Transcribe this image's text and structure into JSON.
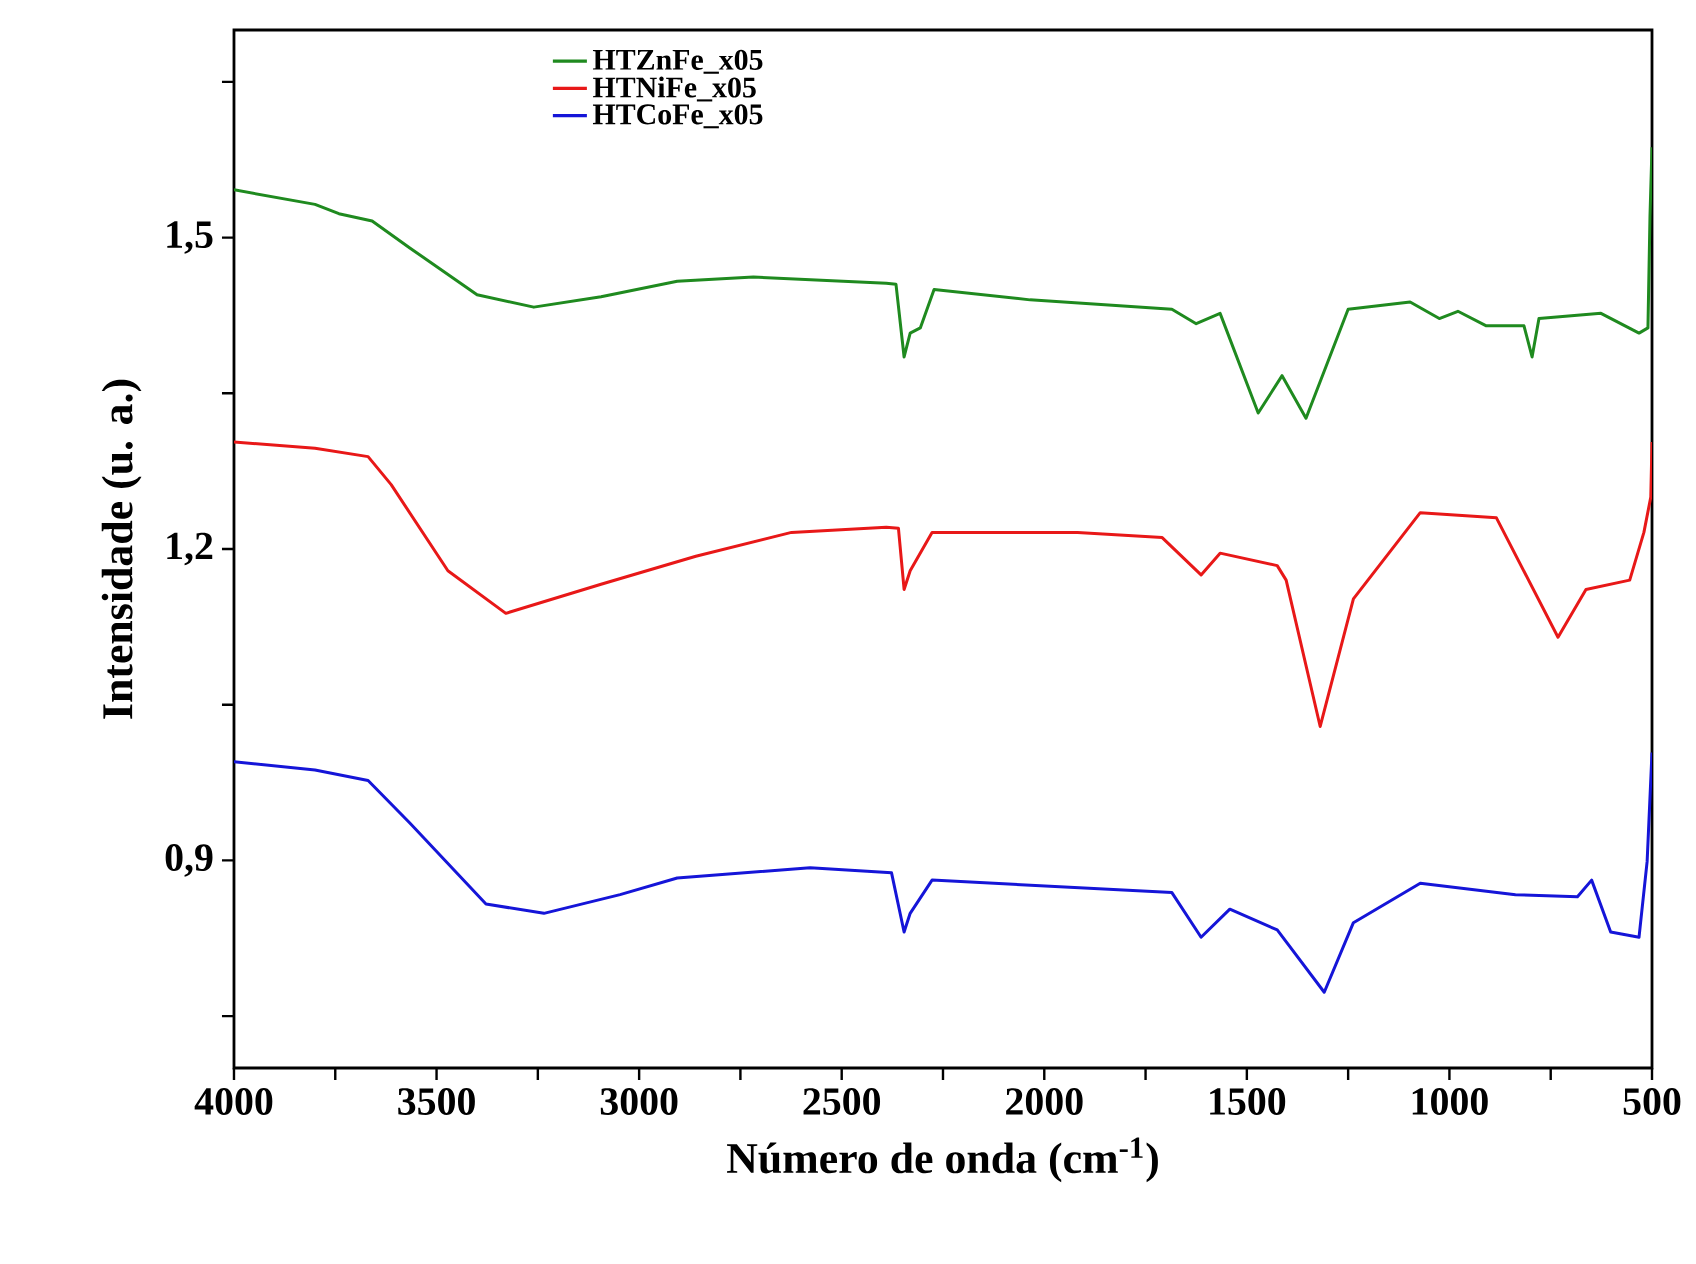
{
  "chart_data": {
    "type": "line",
    "xlabel": "Número de onda (cm$^{-1}$)",
    "ylabel": "Intensidade (u. a.)",
    "xlim": [
      4000,
      500
    ],
    "ylim": [
      0.7,
      1.7
    ],
    "xticks": [
      4000,
      {
        "value": 3750,
        "label": null
      },
      3500,
      {
        "value": 3250,
        "label": null
      },
      3000,
      {
        "value": 2750,
        "label": null
      },
      2500,
      {
        "value": 2250,
        "label": null
      },
      2000,
      {
        "value": 1750,
        "label": null
      },
      1500,
      {
        "value": 1250,
        "label": null
      },
      1000,
      {
        "value": 750,
        "label": null
      },
      500
    ],
    "yticks": [
      {
        "value": 0.75,
        "label": null
      },
      {
        "value": 0.9,
        "label": "0,9"
      },
      {
        "value": 1.05,
        "label": null
      },
      {
        "value": 1.2,
        "label": "1,2"
      },
      {
        "value": 1.35,
        "label": null
      },
      {
        "value": 1.5,
        "label": "1,5"
      },
      {
        "value": 1.65,
        "label": null
      }
    ],
    "legend": "top",
    "series": [
      {
        "name": "HTZnFe_x05",
        "color": "#1f8a1f",
        "x": [
          4000,
          3800,
          3741,
          3659,
          3566,
          3400,
          3260,
          3094,
          2906,
          2718,
          2390,
          2366,
          2346,
          2331,
          2306,
          2272,
          2035,
          1685,
          1625,
          1566,
          1472,
          1413,
          1354,
          1250,
          1097,
          1025,
          979,
          909,
          816,
          796,
          779,
          626,
          532,
          510,
          505,
          500
        ],
        "values": [
          1.546,
          1.532,
          1.523,
          1.516,
          1.49,
          1.445,
          1.433,
          1.443,
          1.458,
          1.462,
          1.456,
          1.455,
          1.385,
          1.408,
          1.413,
          1.45,
          1.44,
          1.431,
          1.417,
          1.427,
          1.331,
          1.367,
          1.326,
          1.431,
          1.438,
          1.422,
          1.429,
          1.415,
          1.415,
          1.385,
          1.422,
          1.427,
          1.408,
          1.413,
          1.52,
          1.587
        ]
      },
      {
        "name": "HTNiFe_x05",
        "color": "#e81818",
        "x": [
          4000,
          3800,
          3669,
          3612,
          3472,
          3329,
          3094,
          2860,
          2624,
          2390,
          2360,
          2346,
          2331,
          2277,
          1918,
          1709,
          1613,
          1566,
          1425,
          1403,
          1319,
          1237,
          1072,
          884,
          732,
          663,
          555,
          520,
          503,
          500
        ],
        "values": [
          1.303,
          1.297,
          1.289,
          1.262,
          1.179,
          1.138,
          1.166,
          1.193,
          1.216,
          1.221,
          1.22,
          1.161,
          1.179,
          1.216,
          1.216,
          1.211,
          1.175,
          1.196,
          1.184,
          1.17,
          1.029,
          1.152,
          1.235,
          1.23,
          1.115,
          1.161,
          1.17,
          1.216,
          1.25,
          1.303
        ]
      },
      {
        "name": "HTCoFe_x05",
        "color": "#1515d8",
        "x": [
          4000,
          3800,
          3669,
          3566,
          3378,
          3235,
          3047,
          2906,
          2578,
          2377,
          2346,
          2331,
          2277,
          1685,
          1613,
          1542,
          1425,
          1309,
          1237,
          1072,
          837,
          684,
          649,
          602,
          532,
          512,
          500
        ],
        "values": [
          0.995,
          0.987,
          0.977,
          0.936,
          0.858,
          0.849,
          0.867,
          0.883,
          0.893,
          0.888,
          0.831,
          0.849,
          0.881,
          0.869,
          0.826,
          0.853,
          0.833,
          0.773,
          0.84,
          0.878,
          0.867,
          0.865,
          0.881,
          0.831,
          0.826,
          0.899,
          1.004
        ]
      }
    ]
  }
}
